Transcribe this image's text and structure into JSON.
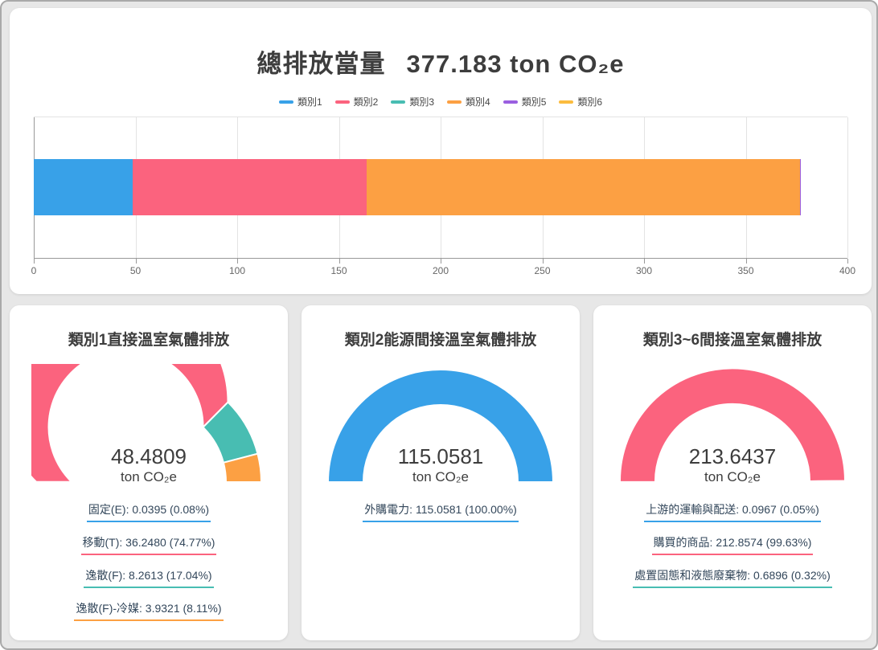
{
  "colors": {
    "page_bg": "#e7e7e7",
    "frame_border": "#a9a9a9",
    "card_bg": "#ffffff",
    "title_text": "#3d3d3d",
    "item_text": "#33475b",
    "axis_text": "#666666",
    "grid_line": "#e3e3e3",
    "axis_line": "#999999",
    "blue": "#38a1e8",
    "pink": "#fb637e",
    "teal": "#48bdb2",
    "orange": "#fca043",
    "purple": "#9a5fe0",
    "yellow": "#fbbc3f"
  },
  "chart_data": [
    {
      "id": "total-emissions",
      "type": "bar",
      "stacked": true,
      "orientation": "horizontal",
      "title": "總排放當量",
      "title_value": "377.183 ton CO₂e",
      "total": 377.183,
      "xlim": [
        0,
        400
      ],
      "xtick_step": 50,
      "xticks": [
        0,
        50,
        100,
        150,
        200,
        250,
        300,
        350,
        400
      ],
      "grid": true,
      "legend_position": "top",
      "series": [
        {
          "name": "類別1",
          "value": 48.4809,
          "color": "#38a1e8"
        },
        {
          "name": "類別2",
          "value": 115.0581,
          "color": "#fb637e"
        },
        {
          "name": "類別3",
          "value": 0.0967,
          "color": "#48bdb2"
        },
        {
          "name": "類別4",
          "value": 212.8574,
          "color": "#fca043"
        },
        {
          "name": "類別5",
          "value": 0.6896,
          "color": "#9a5fe0"
        },
        {
          "name": "類別6",
          "value": 0,
          "color": "#fbbc3f"
        }
      ]
    },
    {
      "id": "scope1",
      "type": "gauge",
      "title": "類別1直接溫室氣體排放",
      "value_label": "48.4809",
      "unit": "ton CO₂e",
      "total": 48.4809,
      "segments": [
        {
          "label": "固定(E)",
          "value": 0.0395,
          "value_label": "0.0395",
          "pct_label": "0.08%",
          "color": "#38a1e8"
        },
        {
          "label": "移動(T)",
          "value": 36.248,
          "value_label": "36.2480",
          "pct_label": "74.77%",
          "color": "#fb637e"
        },
        {
          "label": "逸散(F)",
          "value": 8.2613,
          "value_label": "8.2613",
          "pct_label": "17.04%",
          "color": "#48bdb2"
        },
        {
          "label": "逸散(F)-冷媒",
          "value": 3.9321,
          "value_label": "3.9321",
          "pct_label": "8.11%",
          "color": "#fca043"
        }
      ]
    },
    {
      "id": "scope2",
      "type": "gauge",
      "title": "類別2能源間接溫室氣體排放",
      "value_label": "115.0581",
      "unit": "ton CO₂e",
      "total": 115.0581,
      "segments": [
        {
          "label": "外購電力",
          "value": 115.0581,
          "value_label": "115.0581",
          "pct_label": "100.00%",
          "color": "#38a1e8"
        }
      ]
    },
    {
      "id": "scope3to6",
      "type": "gauge",
      "title": "類別3~6間接溫室氣體排放",
      "value_label": "213.6437",
      "unit": "ton CO₂e",
      "total": 213.6437,
      "segments": [
        {
          "label": "上游的運輸與配送",
          "value": 0.0967,
          "value_label": "0.0967",
          "pct_label": "0.05%",
          "color": "#38a1e8"
        },
        {
          "label": "購買的商品",
          "value": 212.8574,
          "value_label": "212.8574",
          "pct_label": "99.63%",
          "color": "#fb637e"
        },
        {
          "label": "處置固態和液態廢棄物",
          "value": 0.6896,
          "value_label": "0.32%",
          "pct_label": "0.32%",
          "color": "#48bdb2"
        }
      ]
    }
  ]
}
